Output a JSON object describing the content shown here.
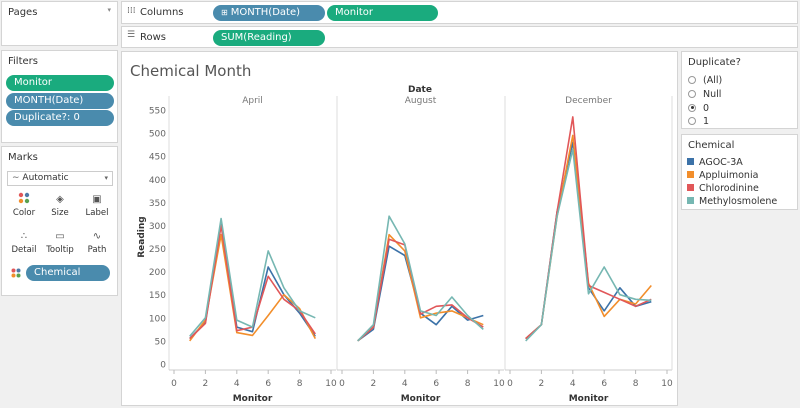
{
  "pages": {
    "title": "Pages",
    "menu_icon": "dropdown-caret-icon"
  },
  "columns": {
    "label": "Columns",
    "pills": [
      "MONTH(Date)",
      "Monitor"
    ]
  },
  "rows": {
    "label": "Rows",
    "pills": [
      "SUM(Reading)"
    ]
  },
  "filters": {
    "title": "Filters",
    "pills": [
      "Monitor",
      "MONTH(Date)",
      "Duplicate?: 0"
    ]
  },
  "marks": {
    "title": "Marks",
    "type": "Automatic",
    "buttons": [
      {
        "label": "Color",
        "icon": "color-dots-icon"
      },
      {
        "label": "Size",
        "icon": "size-icon"
      },
      {
        "label": "Label",
        "icon": "label-icon"
      },
      {
        "label": "Detail",
        "icon": "detail-dots-icon"
      },
      {
        "label": "Tooltip",
        "icon": "tooltip-icon"
      },
      {
        "label": "Path",
        "icon": "path-icon"
      }
    ],
    "color_pill": "Chemical"
  },
  "duplicate_filter": {
    "title": "Duplicate?",
    "options": [
      "(All)",
      "Null",
      "0",
      "1"
    ],
    "selected": "0"
  },
  "colors": {
    "AGOC-3A": "#3c72a8",
    "Appluimonia": "#f28e2b",
    "Chlorodinine": "#e15759",
    "Methylosmolene": "#76b7b2",
    "pill_blue": "#4a8bad",
    "pill_green": "#1aab7e"
  },
  "chart_data": {
    "type": "line",
    "title": "Chemical Month",
    "column_header": "Date",
    "xlabel": "Monitor",
    "ylabel": "Reading",
    "xlim": [
      0,
      10
    ],
    "xticks": [
      0,
      2,
      4,
      6,
      8,
      10
    ],
    "ylim": [
      0,
      550
    ],
    "yticks": [
      0,
      50,
      100,
      150,
      200,
      250,
      300,
      350,
      400,
      450,
      500,
      550
    ],
    "legend_title": "Chemical",
    "legend": [
      "AGOC-3A",
      "Appluimonia",
      "Chlorodinine",
      "Methylosmolene"
    ],
    "x": [
      1,
      2,
      3,
      4,
      5,
      6,
      7,
      8,
      9
    ],
    "panels": [
      {
        "name": "April",
        "series": [
          {
            "name": "AGOC-3A",
            "values": [
              55,
              90,
              305,
              80,
              70,
              210,
              150,
              110,
              60
            ]
          },
          {
            "name": "Appluimonia",
            "values": [
              50,
              95,
              280,
              68,
              62,
              105,
              150,
              120,
              55
            ]
          },
          {
            "name": "Chlorodinine",
            "values": [
              55,
              88,
              300,
              72,
              80,
              190,
              140,
              115,
              65
            ]
          },
          {
            "name": "Methylosmolene",
            "values": [
              60,
              100,
              315,
              95,
              80,
              245,
              165,
              115,
              100
            ]
          }
        ]
      },
      {
        "name": "August",
        "series": [
          {
            "name": "AGOC-3A",
            "values": [
              50,
              75,
              255,
              235,
              110,
              85,
              125,
              95,
              105
            ]
          },
          {
            "name": "Appluimonia",
            "values": [
              50,
              80,
              280,
              245,
              100,
              110,
              115,
              100,
              85
            ]
          },
          {
            "name": "Chlorodinine",
            "values": [
              50,
              80,
              270,
              258,
              108,
              125,
              128,
              100,
              80
            ]
          },
          {
            "name": "Methylosmolene",
            "values": [
              50,
              85,
              320,
              260,
              115,
              105,
              145,
              105,
              75
            ]
          }
        ]
      },
      {
        "name": "December",
        "series": [
          {
            "name": "AGOC-3A",
            "values": [
              55,
              85,
              330,
              480,
              165,
              115,
              165,
              125,
              135
            ]
          },
          {
            "name": "Appluimonia",
            "values": [
              55,
              85,
              320,
              495,
              175,
              103,
              140,
              130,
              170
            ]
          },
          {
            "name": "Chlorodinine",
            "values": [
              55,
              85,
              330,
              535,
              170,
              155,
              140,
              125,
              140
            ]
          },
          {
            "name": "Methylosmolene",
            "values": [
              50,
              85,
              320,
              465,
              152,
              210,
              150,
              140,
              138
            ]
          }
        ]
      }
    ]
  }
}
